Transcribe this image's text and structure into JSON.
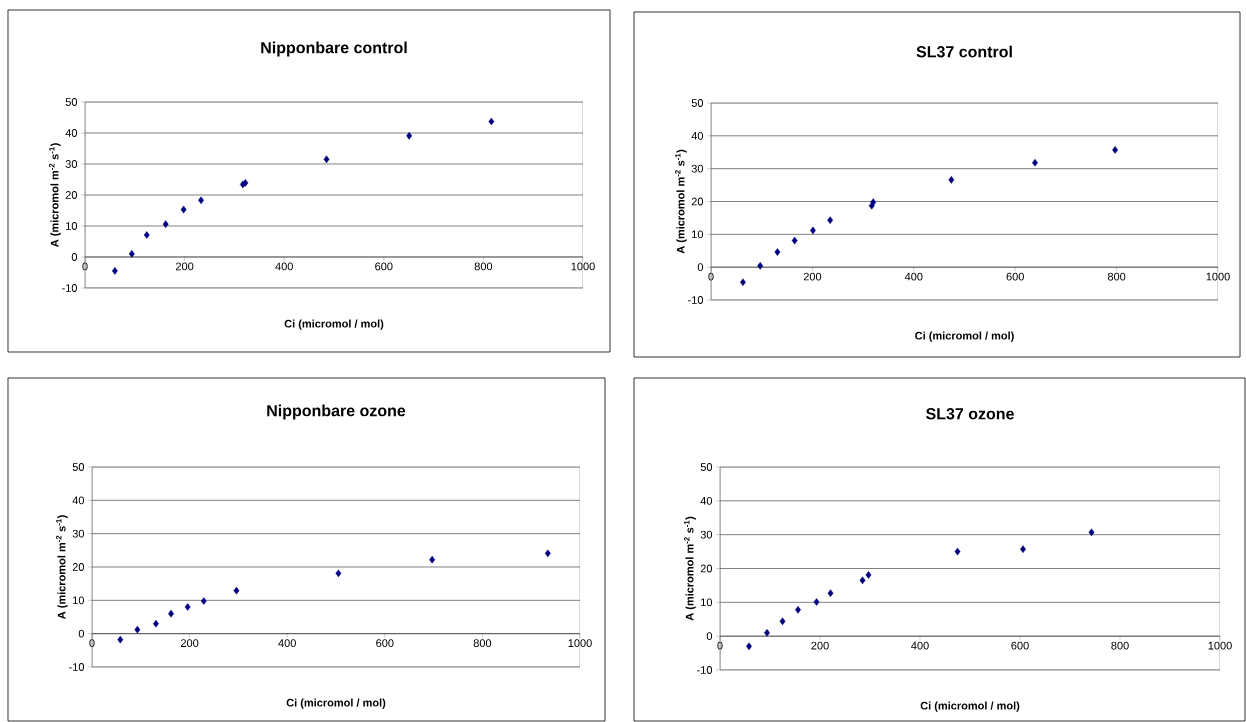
{
  "chart_data": [
    {
      "type": "scatter",
      "title": "Nipponbare control",
      "xlabel": "Ci (micromol / mol)",
      "ylabel": "A (micromol m$^{-2}$ s$^{-1}$)",
      "color": "#000080",
      "marker": "diamond",
      "grid": "y",
      "xlim": [
        0,
        1000
      ],
      "ylim": [
        -10,
        50
      ],
      "xticks": [
        0,
        200,
        400,
        600,
        800,
        1000
      ],
      "yticks": [
        -10,
        0,
        10,
        20,
        30,
        40,
        50
      ],
      "x": [
        60,
        94,
        124,
        162,
        198,
        233,
        317,
        322,
        485,
        651,
        816
      ],
      "values": [
        -4.5,
        1,
        7.1,
        10.6,
        15.3,
        18.3,
        23.4,
        23.9,
        31.5,
        39.1,
        43.7
      ]
    },
    {
      "type": "scatter",
      "title": "SL37 control",
      "xlabel": "Ci (micromol / mol)",
      "ylabel": "A (micromol m$^{-2}$ s$^{-1}$)",
      "color": "#000080",
      "marker": "diamond",
      "grid": "y",
      "xlim": [
        0,
        1000
      ],
      "ylim": [
        -10,
        50
      ],
      "xticks": [
        0,
        200,
        400,
        600,
        800,
        1000
      ],
      "yticks": [
        -10,
        0,
        10,
        20,
        30,
        40,
        50
      ],
      "x": [
        63,
        97,
        131,
        165,
        201,
        235,
        317,
        320,
        474,
        639,
        797
      ],
      "values": [
        -4.6,
        0.4,
        4.6,
        8.1,
        11.2,
        14.3,
        18.7,
        19.8,
        26.6,
        31.8,
        35.7
      ]
    },
    {
      "type": "scatter",
      "title": "Nipponbare ozone",
      "xlabel": "Ci (micromol / mol)",
      "ylabel": "A (micromol m$^{-2}$ s$^{-1}$)",
      "color": "#000080",
      "marker": "diamond",
      "grid": "y",
      "xlim": [
        0,
        1000
      ],
      "ylim": [
        -10,
        50
      ],
      "xticks": [
        0,
        200,
        400,
        600,
        800,
        1000
      ],
      "yticks": [
        -10,
        0,
        10,
        20,
        30,
        40,
        50
      ],
      "x": [
        58,
        93,
        131,
        162,
        196,
        229,
        296,
        505,
        697,
        934
      ],
      "values": [
        -1.8,
        1.2,
        3.0,
        6.0,
        8.0,
        9.8,
        12.9,
        18.1,
        22.2,
        24.1
      ]
    },
    {
      "type": "scatter",
      "title": "SL37 ozone",
      "xlabel": "Ci (micromol / mol)",
      "ylabel": "A (micromol m$^{-2}$ s$^{-1}$)",
      "color": "#000080",
      "marker": "diamond",
      "grid": "y",
      "xlim": [
        0,
        1000
      ],
      "ylim": [
        -10,
        50
      ],
      "xticks": [
        0,
        200,
        400,
        600,
        800,
        1000
      ],
      "yticks": [
        -10,
        0,
        10,
        20,
        30,
        40,
        50
      ],
      "x": [
        58,
        94,
        125,
        156,
        193,
        221,
        285,
        297,
        475,
        606,
        743
      ],
      "values": [
        -3.0,
        1.0,
        4.4,
        7.8,
        10.1,
        12.7,
        16.5,
        18.1,
        25.0,
        25.7,
        30.7
      ]
    }
  ]
}
